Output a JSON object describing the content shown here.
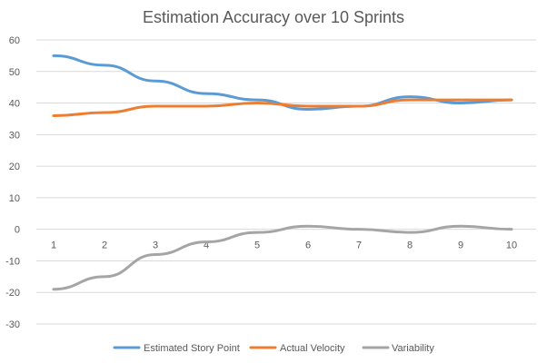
{
  "chart_data": {
    "type": "line",
    "title": "Estimation Accuracy over 10 Sprints",
    "xlabel": "",
    "ylabel": "",
    "categories": [
      "1",
      "2",
      "3",
      "4",
      "5",
      "6",
      "7",
      "8",
      "9",
      "10"
    ],
    "ylim": [
      -30,
      60
    ],
    "yticks": [
      60,
      50,
      40,
      30,
      20,
      10,
      0,
      -10,
      -20,
      -30
    ],
    "grid": true,
    "legend_position": "bottom",
    "series": [
      {
        "name": "Estimated Story Point",
        "color": "#5b9bd5",
        "values": [
          55,
          52,
          47,
          43,
          41,
          38,
          39,
          42,
          40,
          41
        ]
      },
      {
        "name": "Actual Velocity",
        "color": "#ed7d31",
        "values": [
          36,
          37,
          39,
          39,
          40,
          39,
          39,
          41,
          41,
          41
        ]
      },
      {
        "name": "Variability",
        "color": "#a5a5a5",
        "values": [
          -19,
          -15,
          -8,
          -4,
          -1,
          1,
          0,
          -1,
          1,
          0
        ]
      }
    ]
  }
}
